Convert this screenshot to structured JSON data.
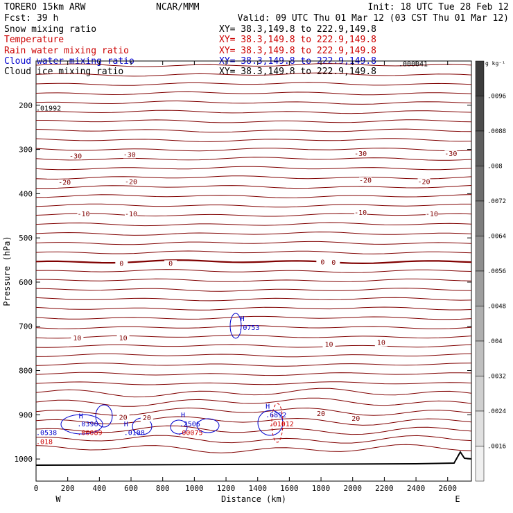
{
  "header": {
    "model": "TORERO  15km ARW",
    "center": "NCAR/MMM",
    "init": "Init: 18 UTC Tue 28 Feb 12",
    "fcst": "Fcst:   39 h",
    "valid": "Valid: 09 UTC Thu 01 Mar 12 (03 CST Thu 01 Mar 12)"
  },
  "fields": [
    {
      "label": "Snow mixing ratio",
      "xy": "",
      "color": "#000000"
    },
    {
      "label": "Temperature",
      "xy": "XY=  38.3,149.8 to 222.9,149.8",
      "color": "#cc0000"
    },
    {
      "label": "Rain water mixing ratio",
      "xy": "XY=  38.3,149.8 to 222.9,149.8",
      "color": "#cc0000"
    },
    {
      "label": "Cloud water mixing ratio",
      "xy": "XY=  38.3,149.8 to 222.9,149.8",
      "color": "#0000cc"
    },
    {
      "label": "Cloud ice mixing ratio",
      "xy": "XY=  38.3,149.8 to 222.9,149.8",
      "color": "#000000"
    }
  ],
  "snow_xy": "XY=  38.3,149.8 to 222.9,149.8",
  "colorbar": {
    "unit": "g kg⁻¹",
    "labels": [
      ".0096",
      ".0088",
      ".008",
      ".0072",
      ".0064",
      ".0056",
      ".0048",
      ".004",
      ".0032",
      ".0024",
      ".0016"
    ]
  },
  "chart_data": {
    "type": "contour",
    "xlabel": "Distance (km)",
    "ylabel": "Pressure (hPa)",
    "xlim": [
      0,
      2750
    ],
    "ylim": [
      1050,
      100
    ],
    "x_ticks": [
      0,
      200,
      400,
      600,
      800,
      1000,
      1200,
      1400,
      1600,
      1800,
      2000,
      2200,
      2400,
      2600
    ],
    "y_ticks": [
      200,
      300,
      400,
      500,
      600,
      700,
      800,
      900,
      1000
    ],
    "x_end_labels": {
      "left": "W",
      "right": "E"
    },
    "temperature_isotherm_labels": [
      {
        "value": "-30",
        "x": 250,
        "p": 320
      },
      {
        "value": "-30",
        "x": 590,
        "p": 317
      },
      {
        "value": "-30",
        "x": 2050,
        "p": 315
      },
      {
        "value": "-30",
        "x": 2620,
        "p": 315
      },
      {
        "value": "-20",
        "x": 180,
        "p": 380
      },
      {
        "value": "-20",
        "x": 600,
        "p": 378
      },
      {
        "value": "-20",
        "x": 2080,
        "p": 375
      },
      {
        "value": "-20",
        "x": 2450,
        "p": 378
      },
      {
        "value": "-10",
        "x": 300,
        "p": 451
      },
      {
        "value": "-10",
        "x": 600,
        "p": 451
      },
      {
        "value": "-10",
        "x": 2050,
        "p": 448
      },
      {
        "value": "-10",
        "x": 2500,
        "p": 451
      },
      {
        "value": "0",
        "x": 540,
        "p": 563
      },
      {
        "value": "0",
        "x": 850,
        "p": 563
      },
      {
        "value": "0",
        "x": 1810,
        "p": 560
      },
      {
        "value": "0",
        "x": 1880,
        "p": 561
      },
      {
        "value": "10",
        "x": 260,
        "p": 732
      },
      {
        "value": "10",
        "x": 550,
        "p": 732
      },
      {
        "value": "10",
        "x": 1850,
        "p": 746
      },
      {
        "value": "10",
        "x": 2180,
        "p": 742
      },
      {
        "value": "20",
        "x": 550,
        "p": 911
      },
      {
        "value": "20",
        "x": 700,
        "p": 912
      },
      {
        "value": "20",
        "x": 1800,
        "p": 903
      },
      {
        "value": "20",
        "x": 2020,
        "p": 914
      }
    ],
    "point_labels": [
      {
        "text": "H",
        "x": 270,
        "p": 908,
        "color": "#0000cc"
      },
      {
        "text": ".0396",
        "x": 260,
        "p": 926,
        "color": "#0000cc"
      },
      {
        "text": ".00089",
        "x": 260,
        "p": 946,
        "color": "#cc0000"
      },
      {
        "text": ".0538",
        "x": 0,
        "p": 946,
        "color": "#0000cc"
      },
      {
        "text": ".018",
        "x": 0,
        "p": 966,
        "color": "#cc0000"
      },
      {
        "text": "H",
        "x": 555,
        "p": 926,
        "color": "#0000cc"
      },
      {
        "text": ".0108",
        "x": 555,
        "p": 946,
        "color": "#0000cc"
      },
      {
        "text": "H",
        "x": 915,
        "p": 906,
        "color": "#0000cc"
      },
      {
        "text": ".2506",
        "x": 905,
        "p": 926,
        "color": "#0000cc"
      },
      {
        "text": ".00075",
        "x": 895,
        "p": 946,
        "color": "#cc0000"
      },
      {
        "text": "H",
        "x": 1290,
        "p": 688,
        "color": "#0000cc"
      },
      {
        "text": ".0753",
        "x": 1280,
        "p": 708,
        "color": "#0000cc"
      },
      {
        "text": "H",
        "x": 1450,
        "p": 886,
        "color": "#0000cc"
      },
      {
        "text": ".6892",
        "x": 1450,
        "p": 906,
        "color": "#0000cc"
      },
      {
        "text": ".01012",
        "x": 1470,
        "p": 926,
        "color": "#cc0000"
      },
      {
        "text": ".01992",
        "x": 0,
        "p": 212,
        "color": "#000000"
      },
      {
        "text": ".000041",
        "x": 2290,
        "p": 112,
        "color": "#000000"
      }
    ]
  }
}
